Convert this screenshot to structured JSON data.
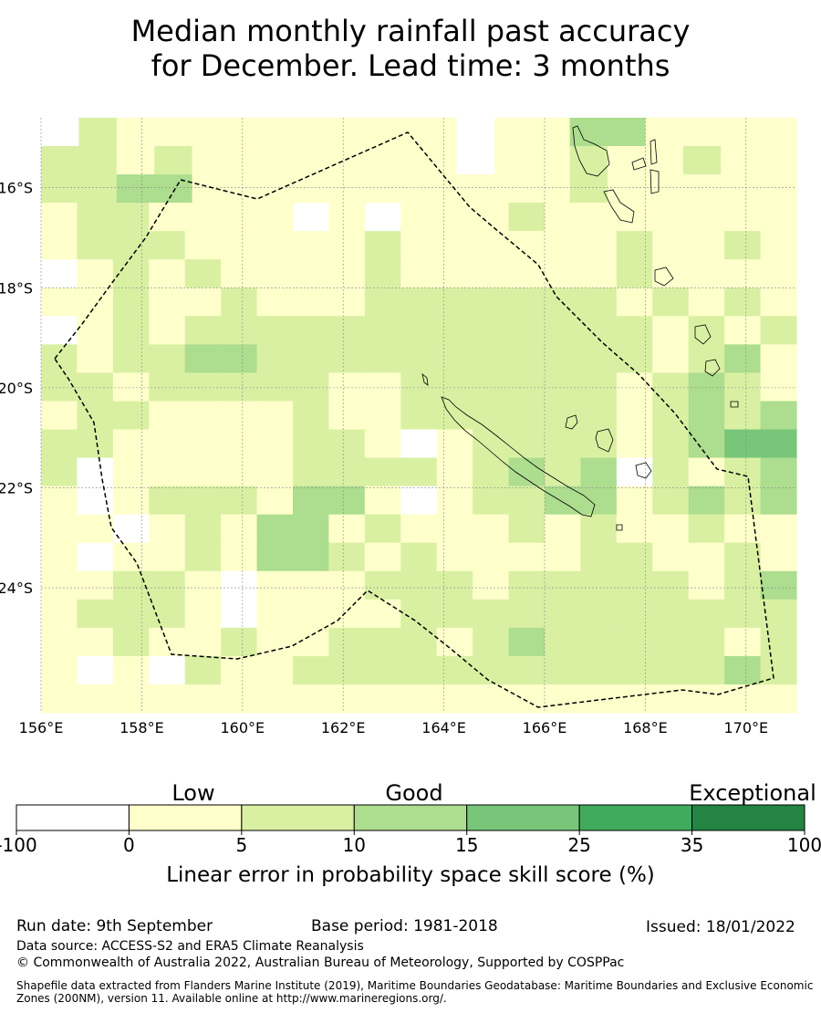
{
  "title": {
    "line1": "Median monthly rainfall past accuracy",
    "line2": "for December. Lead time: 3 months"
  },
  "map": {
    "lat_ticks": [
      "16°S",
      "18°S",
      "20°S",
      "22°S",
      "24°S"
    ],
    "lon_ticks": [
      "156°E",
      "158°E",
      "160°E",
      "162°E",
      "164°E",
      "166°E",
      "168°E",
      "170°E"
    ],
    "lat_range": [
      -26.5,
      -14.6
    ],
    "lon_range": [
      156.0,
      171.0
    ],
    "grid_rows": [
      "ab111111122a11cc2311",
      "bb1b1111121a11b11b11",
      "bbcc1111112112b11112",
      "1bb1112a1a221b1111121",
      "1bbb21122b211211b11b1",
      "a1b1b1122b211112b1111",
      "11b11b111bbbbbbb1b1b1",
      "a1b1bbbbbbbbbbbbb1b1b",
      "b1bbccbbbbbbbbbbb1bc1",
      "bb1bbbbb11bbbbbb1bcb1",
      "1bb1111b11bbbbbb1bcbc",
      "bb11111bb1a1bbbb1bcdd",
      "ba11111bbbb1bcbcab1bc",
      "1a1bbb1cc1a1bbcc1bcbc",
      "11a1b1cc1b111b1b11b11",
      "1a11b1ccb1b1111bb11b1",
      "11bb1a111bbb1bbbbb1bc",
      "1bbb1a1111bbbbbbbbbbb",
      "11b11b11bbb1bcbbbbb1b",
      "1a1ab11bbbbbbbbbbbbcb",
      "111111111111111111111"
    ]
  },
  "colorbar": {
    "category_labels": [
      "Low",
      "Good",
      "Exceptional"
    ],
    "tick_labels": [
      "-100",
      "0",
      "5",
      "10",
      "15",
      "25",
      "35",
      "100"
    ],
    "colors": [
      "#ffffff",
      "#ffffcc",
      "#d9f0a3",
      "#addd8e",
      "#78c679",
      "#41ab5d",
      "#238443"
    ],
    "axis_label": "Linear error in probability space skill score (%)"
  },
  "footer": {
    "run_date": "Run date: 9th September",
    "base_period": "Base period: 1981-2018",
    "issued": "Issued: 18/01/2022",
    "data_source": "Data source: ACCESS-S2 and ERA5 Climate Reanalysis",
    "copyright": "© Commonwealth of Australia 2022, Australian Bureau of Meteorology, Supported by COSPPac",
    "shapefile": "Shapefile data extracted from Flanders Marine Institute (2019), Maritime Boundaries Geodatabase: Maritime Boundaries and Exclusive Economic Zones (200NM), version 11. Available online at http://www.marineregions.org/."
  }
}
